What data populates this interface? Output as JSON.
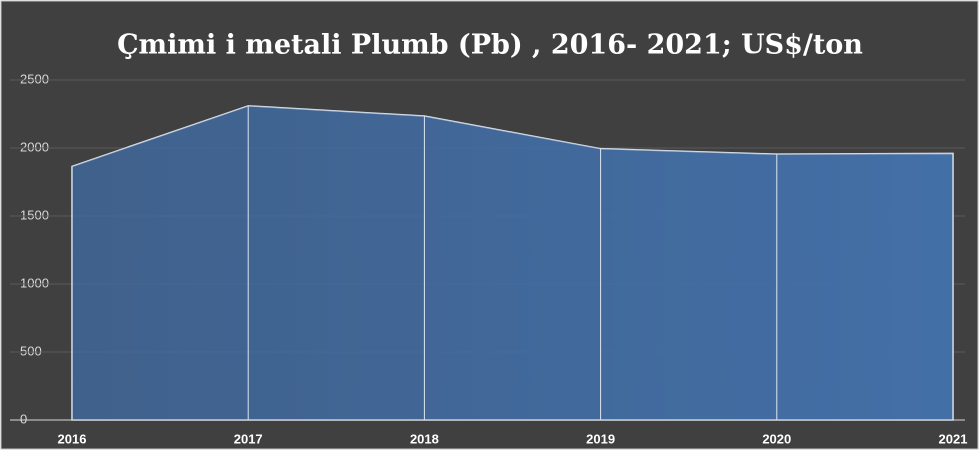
{
  "chart_data": {
    "type": "area",
    "title": "Çmimi i metali Plumb (Pb) , 2016- 2021; US$/ton",
    "categories": [
      "2016",
      "2017",
      "2018",
      "2019",
      "2020",
      "2021"
    ],
    "series": [
      {
        "name": "Plumb",
        "color": "#4f81bd",
        "values": [
          1865,
          2310,
          2235,
          1995,
          1955,
          1960
        ]
      }
    ],
    "ylim": [
      0,
      2500
    ],
    "yticks": [
      0,
      500,
      1000,
      1500,
      2000,
      2500
    ],
    "grid": true
  }
}
